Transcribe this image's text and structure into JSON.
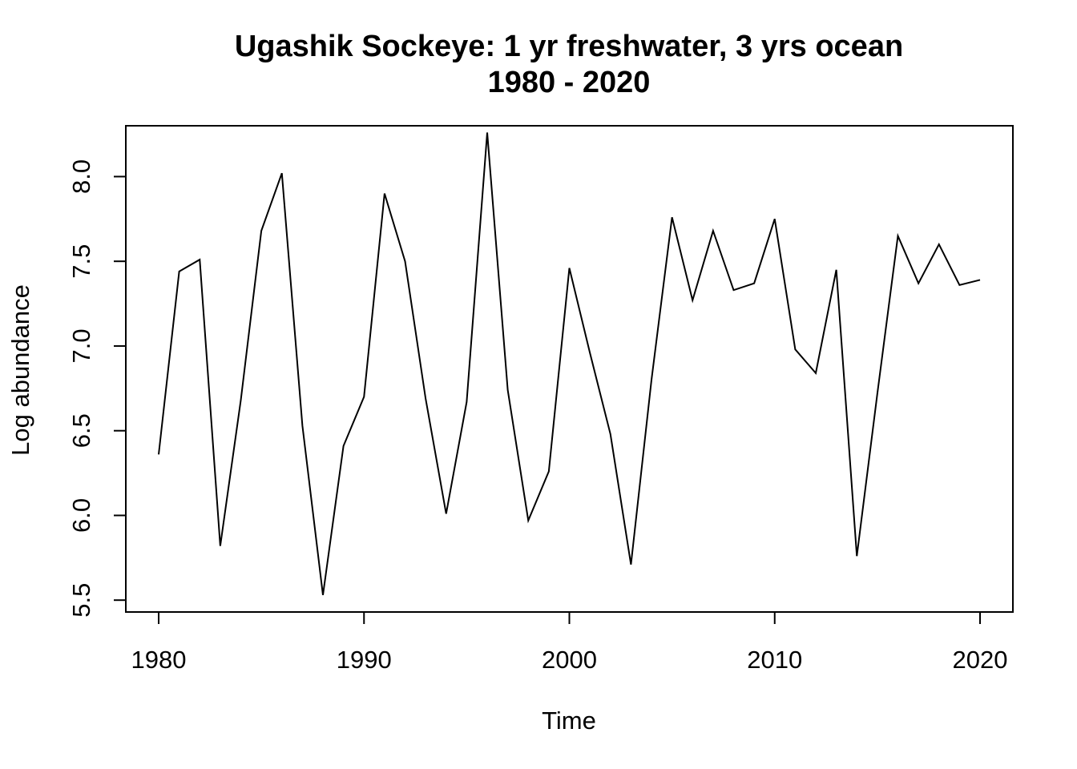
{
  "chart_data": {
    "type": "line",
    "title": "Ugashik Sockeye: 1 yr freshwater, 3 yrs ocean",
    "subtitle": "1980 - 2020",
    "xlabel": "Time",
    "ylabel": "Log abundance",
    "xlim": [
      1978.4,
      2021.6
    ],
    "ylim": [
      5.43,
      8.3
    ],
    "x_ticks": [
      "1980",
      "1990",
      "2000",
      "2010",
      "2020"
    ],
    "y_ticks": [
      "5.5",
      "6.0",
      "6.5",
      "7.0",
      "7.5",
      "8.0"
    ],
    "grid": false,
    "legend": "none",
    "series": [
      {
        "x": [
          1980,
          1981,
          1982,
          1983,
          1984,
          1985,
          1986,
          1987,
          1988,
          1989,
          1990,
          1991,
          1992,
          1993,
          1994,
          1995,
          1996,
          1997,
          1998,
          1999,
          2000,
          2001,
          2002,
          2003,
          2004,
          2005,
          2006,
          2007,
          2008,
          2009,
          2010,
          2011,
          2012,
          2013,
          2014,
          2015,
          2016,
          2017,
          2018,
          2019,
          2020
        ],
        "values": [
          6.36,
          7.44,
          7.51,
          5.82,
          6.68,
          7.68,
          8.02,
          6.53,
          5.53,
          6.41,
          6.7,
          7.9,
          7.5,
          6.69,
          6.01,
          6.67,
          8.26,
          6.74,
          5.97,
          6.26,
          7.46,
          6.96,
          6.48,
          5.71,
          6.8,
          7.76,
          7.27,
          7.68,
          7.33,
          7.37,
          7.75,
          6.98,
          6.84,
          7.45,
          5.76,
          6.72,
          7.65,
          7.37,
          7.6,
          7.36,
          7.39
        ]
      }
    ]
  }
}
